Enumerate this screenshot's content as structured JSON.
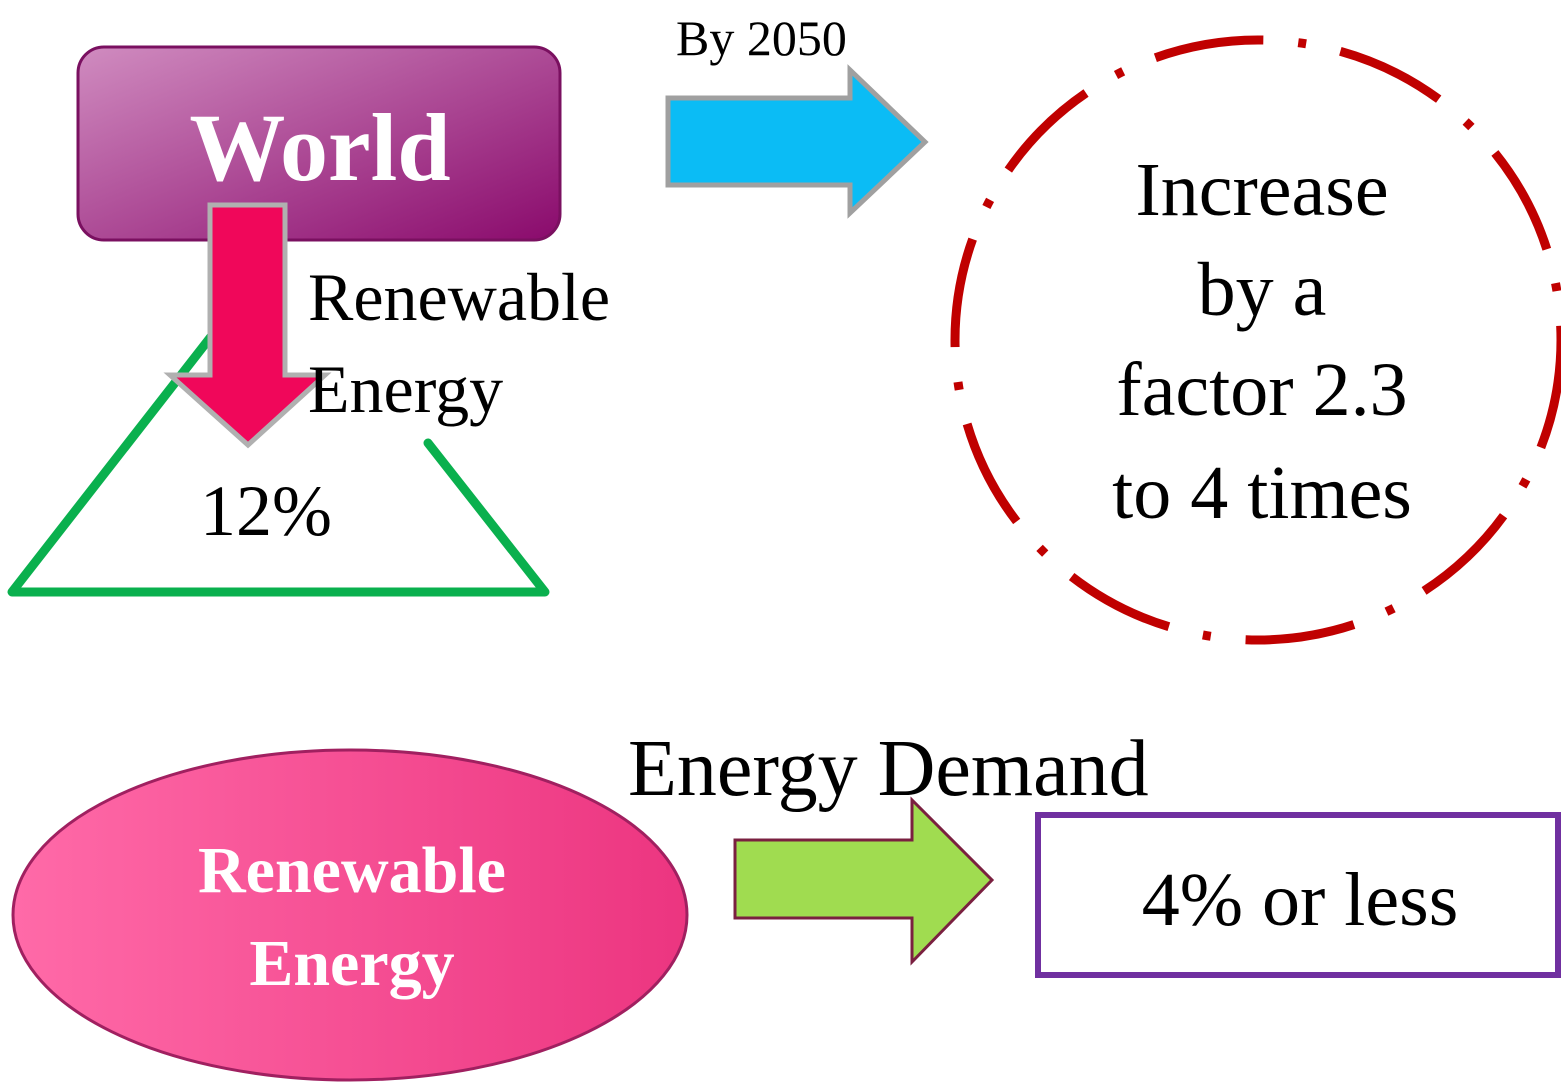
{
  "world": {
    "label": "World"
  },
  "top_arrow": {
    "label": "By 2050"
  },
  "down_arrow": {
    "lines": [
      "Renewable",
      "Energy"
    ]
  },
  "triangle": {
    "label": "12%"
  },
  "circle": {
    "lines": [
      "Increase",
      "by a",
      "factor 2.3",
      "to 4 times"
    ]
  },
  "ellipse": {
    "lines": [
      "Renewable",
      "Energy"
    ]
  },
  "bottom_arrow": {
    "label": "Energy Demand"
  },
  "box": {
    "label": "4% or less"
  }
}
